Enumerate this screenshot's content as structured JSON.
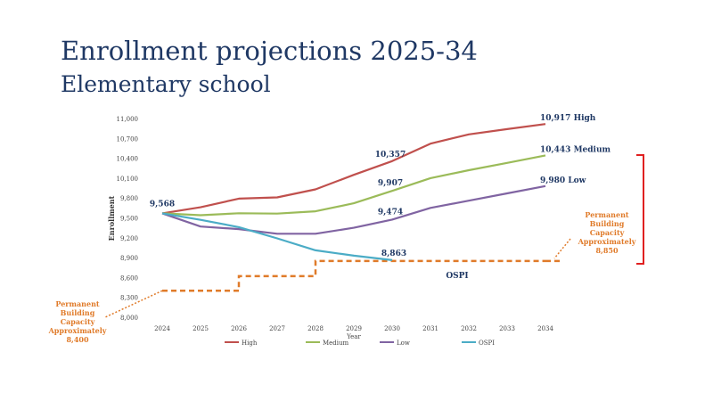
{
  "page": {
    "title": "Enrollment projections 2025-34",
    "subtitle": "Elementary school"
  },
  "chart_data": {
    "type": "line",
    "xlabel": "Year",
    "ylabel": "Enrollment",
    "x": [
      2024,
      2025,
      2026,
      2027,
      2028,
      2029,
      2030,
      2031,
      2032,
      2033,
      2034
    ],
    "y_ticks": [
      "8,000",
      "8,300",
      "8,600",
      "8,900",
      "9,200",
      "9,500",
      "9,800",
      "10,100",
      "10,400",
      "10,700",
      "11,000"
    ],
    "ylim": [
      8000,
      11000
    ],
    "series": [
      {
        "name": "High",
        "color": "#c0504d",
        "values": [
          9568,
          9660,
          9790,
          9810,
          9930,
          10150,
          10357,
          10620,
          10760,
          10840,
          10917
        ]
      },
      {
        "name": "Medium",
        "color": "#9bbb59",
        "values": [
          9568,
          9540,
          9570,
          9565,
          9600,
          9720,
          9907,
          10100,
          10220,
          10330,
          10443
        ]
      },
      {
        "name": "Low",
        "color": "#8064a2",
        "values": [
          9568,
          9370,
          9330,
          9260,
          9260,
          9350,
          9474,
          9650,
          9760,
          9870,
          9980
        ]
      },
      {
        "name": "OSPI",
        "color": "#4bacc6",
        "values": [
          9568,
          9470,
          9360,
          9190,
          9010,
          8930,
          8863,
          null,
          null,
          null,
          null
        ]
      }
    ],
    "data_labels": [
      {
        "text": "9,568",
        "x": 2024,
        "y": 9568,
        "series": "start"
      },
      {
        "text": "10,357",
        "x": 2030,
        "y": 10357,
        "series": "High"
      },
      {
        "text": "9,907",
        "x": 2030,
        "y": 9907,
        "series": "Medium"
      },
      {
        "text": "9,474",
        "x": 2030,
        "y": 9474,
        "series": "Low"
      },
      {
        "text": "8,863",
        "x": 2030,
        "y": 8863,
        "series": "OSPI"
      }
    ],
    "end_labels": [
      {
        "text": "10,917  High",
        "series": "High"
      },
      {
        "text": "10,443  Medium",
        "series": "Medium"
      },
      {
        "text": "9,980   Low",
        "series": "Low"
      }
    ],
    "ospi_label": "OSPI",
    "capacity_line": {
      "color": "#e07b2a",
      "steps": [
        {
          "from": 2024,
          "to": 2026,
          "value": 8400
        },
        {
          "from": 2026,
          "to": 2028,
          "value": 8620
        },
        {
          "from": 2028,
          "to": 2034,
          "value": 8850
        }
      ]
    },
    "capacity_notes": {
      "left": [
        "Permanent",
        "Building",
        "Capacity",
        "Approximately",
        "8,400"
      ],
      "right": [
        "Permanent",
        "Building",
        "Capacity",
        "Approximately",
        "8,850"
      ]
    },
    "bracket_color": "#e02020",
    "legend_position": "bottom",
    "grid": false
  }
}
